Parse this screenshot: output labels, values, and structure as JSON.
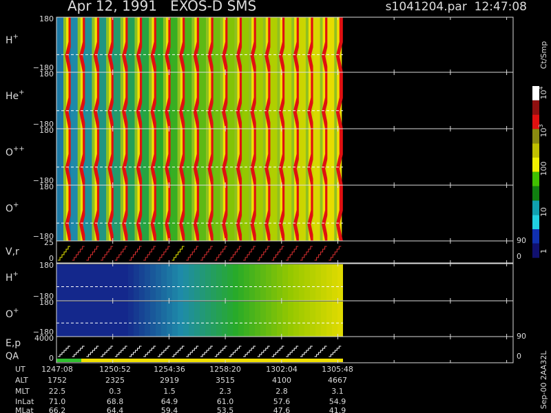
{
  "header": {
    "title": "Apr 12, 1991   EXOS-D SMS",
    "file": "s1041204.par  12:47:08"
  },
  "panels": [
    {
      "label": "H",
      "charge": "+",
      "top": "180",
      "bottom": "−180"
    },
    {
      "label": "He",
      "charge": "+",
      "top": "180",
      "bottom": "−180"
    },
    {
      "label": "O",
      "charge": "++",
      "top": "180",
      "bottom": "−180"
    },
    {
      "label": "O",
      "charge": "+",
      "top": "180",
      "bottom": "−180"
    },
    {
      "label": "V,r",
      "top": "25",
      "bottom": "0",
      "right_top": "90",
      "right_bottom": "0"
    },
    {
      "label": "H",
      "charge": "+",
      "top": "180",
      "bottom": "−180"
    },
    {
      "label": "O",
      "charge": "+",
      "top": "180",
      "bottom": "−180"
    },
    {
      "label": "E,p",
      "label2": "QA",
      "top": "4000",
      "bottom": "0",
      "right_top": "90",
      "right_bottom": "0"
    }
  ],
  "colorbar": {
    "unit": "Ct/Smp",
    "labels": [
      {
        "base": "10",
        "exp": "4"
      },
      {
        "base": "10",
        "exp": "3"
      },
      {
        "base": "100"
      },
      {
        "base": "10"
      },
      {
        "base": "1"
      }
    ]
  },
  "table": {
    "rows": [
      [
        "UT",
        "1247:08",
        "1250:52",
        "1254:36",
        "1258:20",
        "1302:04",
        "1305:48"
      ],
      [
        "ALT",
        "1752",
        "2325",
        "2919",
        "3515",
        "4100",
        "4667"
      ],
      [
        "MLT",
        "22.5",
        "0.3",
        "1.5",
        "2.3",
        "2.8",
        "3.1"
      ],
      [
        "InLat",
        "71.0",
        "68.8",
        "64.9",
        "61.0",
        "57.6",
        "54.9"
      ],
      [
        "MLat",
        "66.2",
        "64.4",
        "59.4",
        "53.5",
        "47.6",
        "41.9"
      ]
    ]
  },
  "footer": "Sep-00 2AA32L"
}
